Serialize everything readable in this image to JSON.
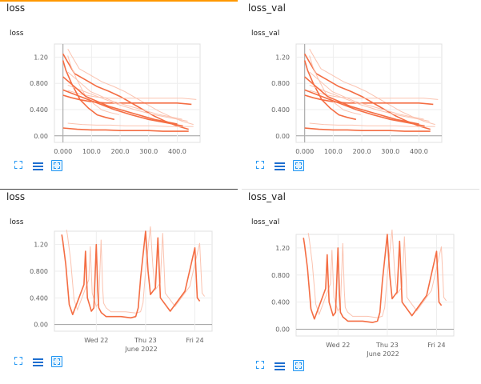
{
  "colors": {
    "series": "#f46d43",
    "series_smoothed_bg": "#fbc3b0",
    "accent": "#ff9800",
    "icon": "#2196f3"
  },
  "cards": [
    {
      "header": "loss",
      "chart_title": "loss",
      "toolbar": [
        "expand-icon",
        "data-table-icon",
        "fit-domain-icon"
      ]
    },
    {
      "header": "loss_val",
      "chart_title": "loss_val",
      "toolbar": [
        "expand-icon",
        "data-table-icon",
        "fit-domain-icon"
      ]
    },
    {
      "header": "loss",
      "chart_title": "loss",
      "toolbar": [
        "expand-icon",
        "data-table-icon",
        "fit-domain-icon"
      ]
    },
    {
      "header": "loss_val",
      "chart_title": "loss_val",
      "toolbar": [
        "expand-icon",
        "data-table-icon",
        "fit-domain-icon"
      ]
    }
  ],
  "chart_data": [
    {
      "type": "line",
      "title": "loss",
      "xlabel": "",
      "x_ticks": [
        "0.000",
        "100.0",
        "200.0",
        "300.0",
        "400.0"
      ],
      "y_ticks": [
        "0.00",
        "0.400",
        "0.800",
        "1.20"
      ],
      "xlim": [
        -30,
        480
      ],
      "ylim": [
        -0.1,
        1.4
      ],
      "grid": true,
      "series": [
        {
          "x": [
            0,
            20,
            40,
            80,
            120,
            160,
            200,
            240,
            280,
            320,
            360,
            400,
            440
          ],
          "y": [
            1.25,
            1.1,
            0.95,
            0.85,
            0.75,
            0.68,
            0.6,
            0.5,
            0.4,
            0.3,
            0.22,
            0.15,
            0.1
          ]
        },
        {
          "x": [
            0,
            30,
            60,
            100,
            150,
            200,
            250,
            300,
            350,
            400,
            450
          ],
          "y": [
            0.62,
            0.58,
            0.55,
            0.52,
            0.5,
            0.5,
            0.5,
            0.5,
            0.5,
            0.5,
            0.48
          ]
        },
        {
          "x": [
            0,
            10,
            30,
            60,
            90,
            120,
            150,
            180
          ],
          "y": [
            1.15,
            1.0,
            0.8,
            0.55,
            0.42,
            0.32,
            0.28,
            0.25
          ]
        },
        {
          "x": [
            0,
            50,
            100,
            150,
            200,
            250,
            300,
            350,
            400,
            440
          ],
          "y": [
            0.12,
            0.1,
            0.09,
            0.09,
            0.08,
            0.08,
            0.08,
            0.07,
            0.07,
            0.07
          ]
        },
        {
          "x": [
            0,
            60,
            120,
            180,
            240,
            300,
            360,
            420
          ],
          "y": [
            0.7,
            0.6,
            0.5,
            0.4,
            0.32,
            0.25,
            0.2,
            0.15
          ]
        },
        {
          "x": [
            0,
            40,
            80,
            160,
            240,
            320,
            400
          ],
          "y": [
            0.9,
            0.75,
            0.6,
            0.45,
            0.35,
            0.25,
            0.18
          ]
        }
      ]
    },
    {
      "type": "line",
      "title": "loss_val",
      "xlabel": "",
      "x_ticks": [
        "0.000",
        "100.0",
        "200.0",
        "300.0",
        "400.0"
      ],
      "y_ticks": [
        "0.00",
        "0.400",
        "0.800",
        "1.20"
      ],
      "xlim": [
        -30,
        480
      ],
      "ylim": [
        -0.1,
        1.4
      ],
      "grid": true,
      "series": [
        {
          "x": [
            0,
            20,
            40,
            80,
            120,
            160,
            200,
            240,
            280,
            320,
            360,
            400,
            440
          ],
          "y": [
            1.25,
            1.1,
            0.95,
            0.85,
            0.75,
            0.68,
            0.6,
            0.5,
            0.4,
            0.3,
            0.22,
            0.15,
            0.1
          ]
        },
        {
          "x": [
            0,
            30,
            60,
            100,
            150,
            200,
            250,
            300,
            350,
            400,
            450
          ],
          "y": [
            0.62,
            0.58,
            0.55,
            0.52,
            0.5,
            0.5,
            0.5,
            0.5,
            0.5,
            0.5,
            0.48
          ]
        },
        {
          "x": [
            0,
            10,
            30,
            60,
            90,
            120,
            150,
            180
          ],
          "y": [
            1.15,
            1.0,
            0.8,
            0.55,
            0.42,
            0.32,
            0.28,
            0.25
          ]
        },
        {
          "x": [
            0,
            50,
            100,
            150,
            200,
            250,
            300,
            350,
            400,
            440
          ],
          "y": [
            0.12,
            0.1,
            0.09,
            0.09,
            0.08,
            0.08,
            0.08,
            0.07,
            0.07,
            0.07
          ]
        },
        {
          "x": [
            0,
            60,
            120,
            180,
            240,
            300,
            360,
            420
          ],
          "y": [
            0.7,
            0.6,
            0.5,
            0.4,
            0.32,
            0.25,
            0.2,
            0.15
          ]
        },
        {
          "x": [
            0,
            40,
            80,
            160,
            240,
            320,
            400
          ],
          "y": [
            0.9,
            0.75,
            0.6,
            0.45,
            0.35,
            0.25,
            0.18
          ]
        }
      ]
    },
    {
      "type": "line",
      "title": "loss",
      "xlabel": "June 2022",
      "x_ticks": [
        "Wed 22",
        "Thu 23",
        "Fri 24"
      ],
      "x_tick_pos": [
        1.0,
        2.0,
        3.0
      ],
      "y_ticks": [
        "0.00",
        "0.400",
        "0.800",
        "1.20"
      ],
      "xlim": [
        0.15,
        3.35
      ],
      "ylim": [
        -0.1,
        1.4
      ],
      "grid": true,
      "series": [
        {
          "x": [
            0.3,
            0.32,
            0.38,
            0.45,
            0.52,
            0.75,
            0.78,
            0.82,
            0.9,
            0.95,
            1.0,
            1.03,
            1.05,
            1.1,
            1.2,
            1.5,
            1.7,
            1.8,
            1.85,
            1.9,
            2.0,
            2.05,
            2.1,
            2.15,
            2.2,
            2.25,
            2.3,
            2.5,
            2.8,
            3.0,
            3.05,
            3.1
          ],
          "y": [
            1.35,
            1.25,
            0.9,
            0.3,
            0.15,
            0.6,
            1.1,
            0.4,
            0.2,
            0.25,
            1.2,
            0.5,
            0.25,
            0.18,
            0.12,
            0.12,
            0.1,
            0.12,
            0.25,
            0.7,
            1.4,
            0.8,
            0.45,
            0.5,
            0.55,
            1.3,
            0.4,
            0.2,
            0.5,
            1.15,
            0.4,
            0.35
          ]
        }
      ]
    },
    {
      "type": "line",
      "title": "loss_val",
      "xlabel": "June 2022",
      "x_ticks": [
        "Wed 22",
        "Thu 23",
        "Fri 24"
      ],
      "x_tick_pos": [
        1.0,
        2.0,
        3.0
      ],
      "y_ticks": [
        "0.00",
        "0.400",
        "0.800",
        "1.20"
      ],
      "xlim": [
        0.15,
        3.35
      ],
      "ylim": [
        -0.1,
        1.4
      ],
      "grid": true,
      "series": [
        {
          "x": [
            0.3,
            0.32,
            0.38,
            0.45,
            0.52,
            0.75,
            0.78,
            0.82,
            0.9,
            0.95,
            1.0,
            1.03,
            1.05,
            1.1,
            1.2,
            1.5,
            1.7,
            1.8,
            1.85,
            1.9,
            2.0,
            2.05,
            2.1,
            2.15,
            2.2,
            2.25,
            2.3,
            2.5,
            2.8,
            3.0,
            3.05,
            3.1
          ],
          "y": [
            1.35,
            1.25,
            0.9,
            0.3,
            0.15,
            0.6,
            1.1,
            0.4,
            0.2,
            0.25,
            1.2,
            0.5,
            0.25,
            0.18,
            0.12,
            0.12,
            0.1,
            0.12,
            0.25,
            0.7,
            1.4,
            0.8,
            0.45,
            0.5,
            0.55,
            1.3,
            0.4,
            0.2,
            0.5,
            1.15,
            0.4,
            0.35
          ]
        }
      ]
    }
  ]
}
